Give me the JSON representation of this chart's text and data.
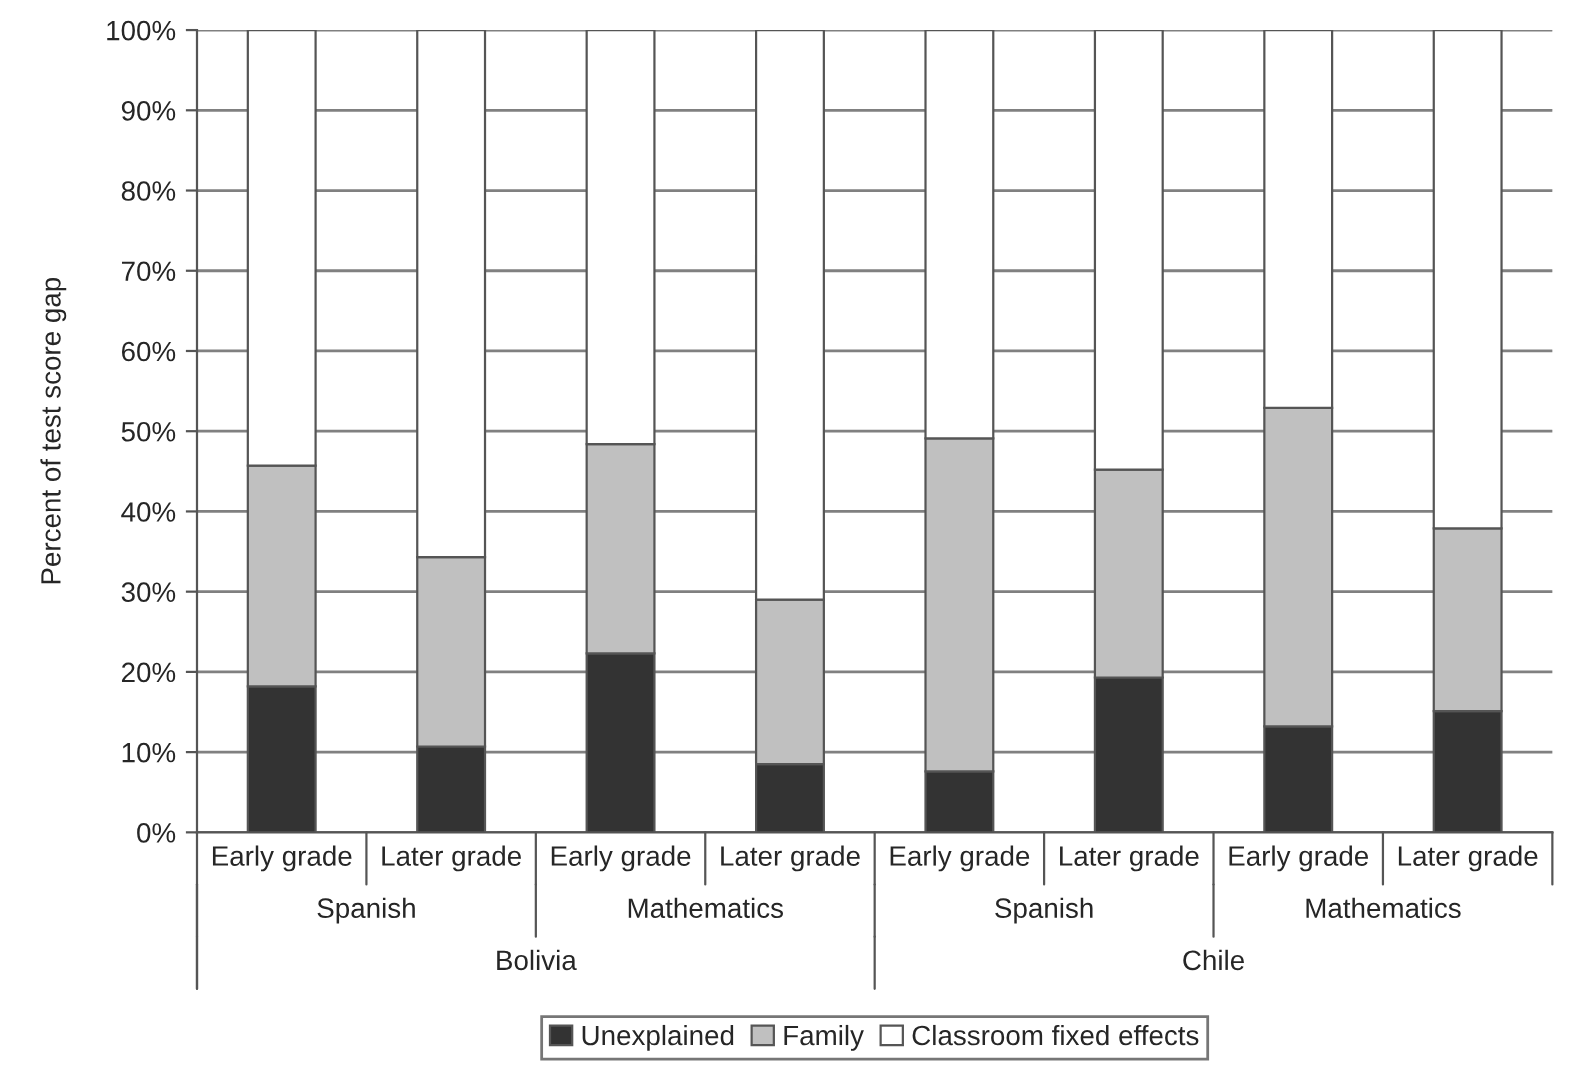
{
  "chart_data": {
    "type": "bar",
    "stacked": true,
    "ylabel": "Percent of test score gap",
    "categories": [
      "Early grade",
      "Later grade",
      "Early grade",
      "Later grade",
      "Early grade",
      "Later grade",
      "Early grade",
      "Later grade"
    ],
    "series": [
      {
        "name": "Unexplained",
        "color": "#333333",
        "values": [
          18.2,
          10.7,
          22.3,
          8.5,
          7.6,
          19.3,
          13.2,
          15.1
        ]
      },
      {
        "name": "Family",
        "color": "#c0c0c0",
        "values": [
          27.5,
          23.6,
          26.1,
          20.5,
          41.5,
          25.9,
          39.7,
          22.8
        ]
      },
      {
        "name": "Classroom fixed effects",
        "color": "#ffffff",
        "values": [
          54.3,
          65.7,
          51.6,
          71.0,
          50.9,
          54.8,
          47.1,
          62.1
        ]
      }
    ],
    "annotations": [
      "Spanish",
      "Mathematics",
      "Spanish",
      "Mathematics",
      "Bolivia",
      "Chile"
    ],
    "ylim": [
      0,
      100
    ],
    "yticks": [
      {
        "value": 0,
        "label": "0%"
      },
      {
        "value": 10,
        "label": "10%"
      },
      {
        "value": 20,
        "label": "20%"
      },
      {
        "value": 30,
        "label": "30%"
      },
      {
        "value": 40,
        "label": "40%"
      },
      {
        "value": 50,
        "label": "50%"
      },
      {
        "value": 60,
        "label": "60%"
      },
      {
        "value": 70,
        "label": "70%"
      },
      {
        "value": 80,
        "label": "80%"
      },
      {
        "value": 90,
        "label": "90%"
      },
      {
        "value": 100,
        "label": "100%"
      }
    ],
    "grid": "y",
    "legend": "bottom"
  }
}
